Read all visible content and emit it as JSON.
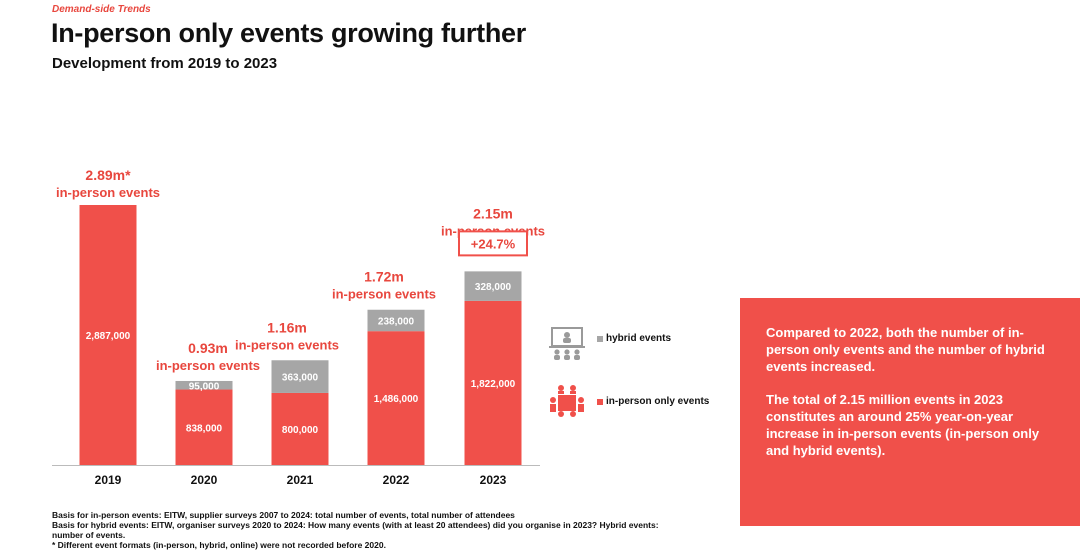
{
  "header": {
    "kicker": "Demand-side Trends",
    "title": "In-person only events growing further",
    "subtitle": "Development from 2019 to 2023"
  },
  "colors": {
    "inperson": "#f0504a",
    "hybrid": "#a6a6a6",
    "text_red": "#e8473e",
    "axis": "#bbbbbb"
  },
  "chart_data": {
    "type": "bar",
    "stacked": true,
    "categories": [
      "2019",
      "2020",
      "2021",
      "2022",
      "2023"
    ],
    "series": [
      {
        "name": "in-person only events",
        "values": [
          2887000,
          838000,
          800000,
          1486000,
          1822000
        ]
      },
      {
        "name": "hybrid events",
        "values": [
          null,
          95000,
          363000,
          238000,
          328000
        ]
      }
    ],
    "value_labels": {
      "inperson": [
        "2,887,000",
        "838,000",
        "800,000",
        "1,486,000",
        "1,822,000"
      ],
      "hybrid": [
        "",
        "95,000",
        "363,000",
        "238,000",
        "328,000"
      ]
    },
    "totals": [
      {
        "value": "2.89m*",
        "label": "in-person events"
      },
      {
        "value": "0.93m",
        "label": "in-person events"
      },
      {
        "value": "1.16m",
        "label": "in-person events"
      },
      {
        "value": "1.72m",
        "label": "in-person events"
      },
      {
        "value": "2.15m",
        "label": "in-person events"
      }
    ],
    "growth_badge": "+24.7%",
    "ylim": [
      0,
      2887000
    ],
    "legend": [
      "hybrid events",
      "in-person only events"
    ]
  },
  "legend": {
    "hybrid": "hybrid events",
    "inperson": "in-person only events"
  },
  "infobox": {
    "p1": "Compared to 2022, both the number of in-person only events and the number of hybrid events increased.",
    "p2": "The total of 2.15 million events in 2023 constitutes an around 25% year-on-year increase in in-person events (in-person only and hybrid events)."
  },
  "footnotes": {
    "line1": "Basis for in-person events: EITW, supplier surveys 2007 to 2024: total number of events, total number of attendees",
    "line2": "Basis for hybrid events: EITW, organiser surveys 2020 to 2024: How many events (with at least 20 attendees) did you organise in 2023? Hybrid events: number of events.",
    "line3": "* Different event formats (in-person, hybrid, online) were not recorded before 2020."
  }
}
